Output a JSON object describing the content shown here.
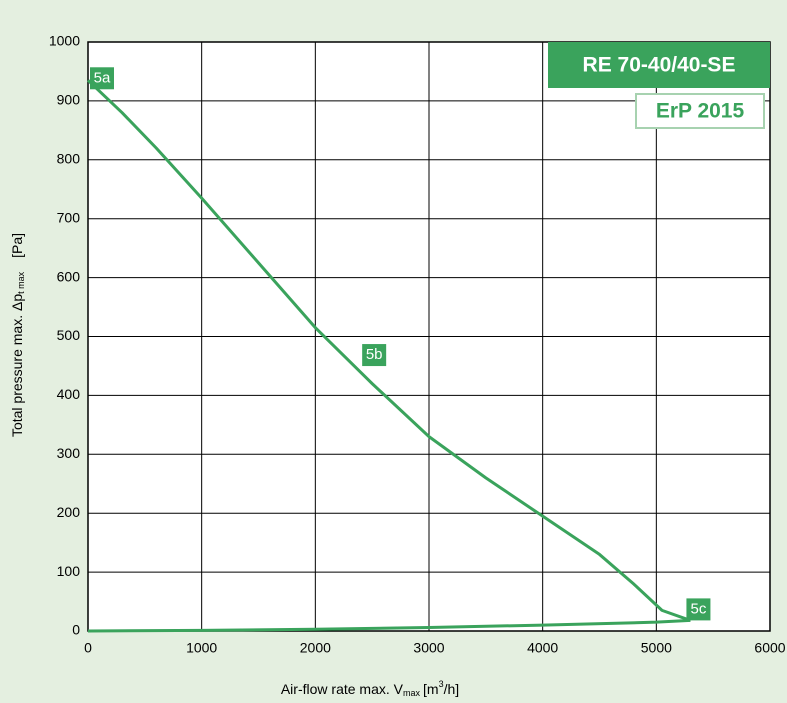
{
  "chart_data": {
    "type": "line",
    "title": "RE 70-40/40-SE",
    "subtitle": "ErP 2015",
    "xlabel": {
      "main": "Air-flow rate max. V",
      "sub": "max",
      "unit": "[m",
      "sup": "3",
      "unit_end": "/h]"
    },
    "ylabel": {
      "main": "Total pressure max.   Δp",
      "sub": "t max",
      "unit": "[Pa]"
    },
    "xlim": [
      0,
      6000
    ],
    "xticks": [
      0,
      1000,
      2000,
      3000,
      4000,
      5000,
      6000
    ],
    "ylim": [
      0,
      1000
    ],
    "yticks": [
      0,
      100,
      200,
      300,
      400,
      500,
      600,
      700,
      800,
      900,
      1000
    ],
    "grid": true,
    "color": "#3aa35c",
    "series": [
      {
        "x": [
          0,
          300,
          600,
          1000,
          1500,
          2000,
          2500,
          3000,
          3500,
          4000,
          4500,
          4800,
          5050,
          5300
        ],
        "values": [
          935,
          880,
          820,
          735,
          625,
          515,
          420,
          330,
          260,
          195,
          130,
          80,
          35,
          18
        ]
      },
      {
        "x": [
          0,
          1000,
          2000,
          3000,
          4000,
          5000,
          5300
        ],
        "values": [
          0,
          1,
          3,
          6,
          10,
          15,
          18
        ]
      }
    ],
    "annotations": [
      {
        "text": "5a",
        "x": 0,
        "y": 935
      },
      {
        "text": "5b",
        "x": 2500,
        "y": 460
      },
      {
        "text": "5c",
        "x": 5300,
        "y": 18
      }
    ]
  }
}
